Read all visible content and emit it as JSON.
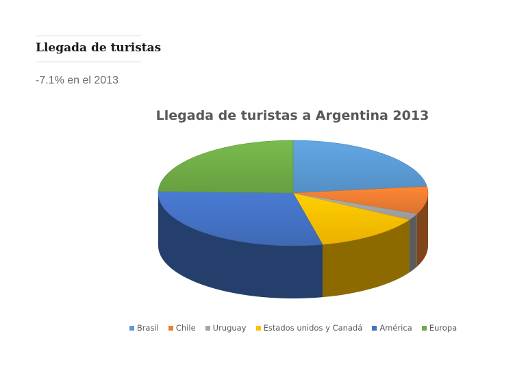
{
  "slide": {
    "title": "Llegada de turistas",
    "subtitle": "-7.1% en el 2013"
  },
  "chart_data": {
    "type": "pie",
    "title": "Llegada de turistas a Argentina 2013",
    "style": "3d-tilted",
    "legend_position": "bottom",
    "series": [
      {
        "name": "Brasil",
        "value": 23.0,
        "color": "#5b9bd5"
      },
      {
        "name": "Chile",
        "value": 8.5,
        "color": "#ed7d31"
      },
      {
        "name": "Uruguay",
        "value": 2.0,
        "color": "#a5a5a5"
      },
      {
        "name": "Estados unidos y Canadá",
        "value": 13.0,
        "color": "#ffc000"
      },
      {
        "name": "América",
        "value": 29.0,
        "color": "#4472c4"
      },
      {
        "name": "Europa",
        "value": 24.5,
        "color": "#70ad47"
      }
    ]
  }
}
